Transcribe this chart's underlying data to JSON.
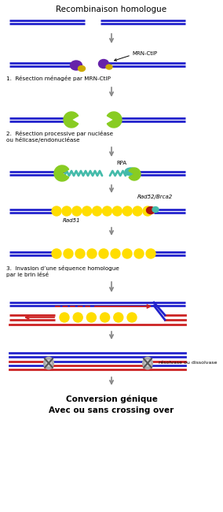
{
  "title": "Recombinaison homologue",
  "blue": "#2222cc",
  "red": "#cc2222",
  "yellow": "#ffdd00",
  "green": "#88cc22",
  "purple": "#6622aa",
  "gold": "#ccaa00",
  "teal": "#44bbaa",
  "darkred": "#aa1111",
  "gray": "#888888",
  "bg": "#ffffff",
  "label1": "1.  Résection ménagée par MRN-CtIP",
  "label2": "2.  Résection processive par nucléase\nou hélicase/endonucléase",
  "label3": "3.  Invasion d’une séquence homologue\npar le brin lésé",
  "label_mrn": "MRN-CtIP",
  "label_rpa": "RPA",
  "label_rad52": "Rad52/Brca2",
  "label_rad51": "Rad51",
  "label_resolvase": "résolvase ou dissolvase",
  "label_final1": "Conversion génique",
  "label_final2": "Avec ou sans crossing over",
  "lw": 2.0
}
